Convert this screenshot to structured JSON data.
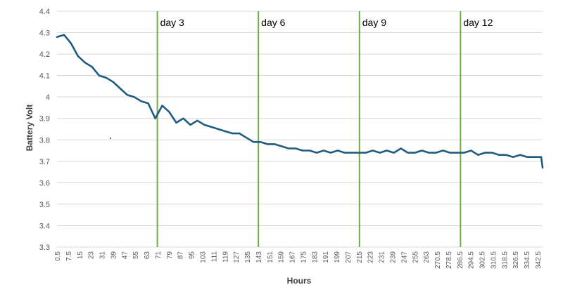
{
  "chart_data": {
    "type": "line",
    "title": "",
    "xlabel": "Hours",
    "ylabel": "Battery Volt",
    "ylim": [
      3.3,
      4.4
    ],
    "y_ticks": [
      "3.3",
      "3.4",
      "3.5",
      "3.6",
      "3.7",
      "3.8",
      "3.9",
      "4",
      "4.1",
      "4.2",
      "4.3",
      "4.4"
    ],
    "x_tick_labels": [
      "0.5",
      "7.5",
      "15",
      "23",
      "31",
      "39",
      "47",
      "55",
      "63",
      "71",
      "79",
      "87",
      "95",
      "103",
      "111",
      "119",
      "127",
      "135",
      "143",
      "151",
      "159",
      "167",
      "175",
      "183",
      "191",
      "199",
      "207",
      "215",
      "223",
      "231",
      "239",
      "247",
      "255",
      "263",
      "270.5",
      "278.5",
      "286.5",
      "294.5",
      "302.5",
      "310.5",
      "318.5",
      "326.5",
      "334.5",
      "342.5"
    ],
    "xlim": [
      0.5,
      346.5
    ],
    "grid": "horizontal",
    "legend": "none",
    "line_color": "#1f5c7f",
    "marker_color": "#70ad47",
    "markers": [
      {
        "label": "day 3",
        "x": 72
      },
      {
        "label": "day 6",
        "x": 144
      },
      {
        "label": "day 9",
        "x": 216
      },
      {
        "label": "day 12",
        "x": 288
      }
    ],
    "series": [
      {
        "x": [
          0.5,
          5.5,
          10.5,
          15.5,
          20.5,
          25.5,
          30.5,
          35.5,
          40.5,
          45.5,
          50.5,
          55.5,
          60.5,
          65.5,
          70.5,
          75.5,
          80.5,
          85.5,
          90.5,
          95.5,
          100.5,
          105.5,
          110.5,
          115.5,
          120.5,
          125.5,
          130.5,
          135.5,
          140.5,
          145.5,
          150.5,
          155.5,
          160.5,
          165.5,
          170.5,
          175.5,
          180.5,
          185.5,
          190.5,
          195.5,
          200.5,
          205.5,
          210.5,
          215.5,
          220.5,
          225.5,
          230.5,
          235.5,
          240.5,
          245.5,
          250.5,
          255.5,
          260.5,
          265.5,
          270.5,
          275.5,
          280.5,
          285.5,
          290.5,
          295.5,
          300.5,
          305.5,
          310.5,
          315.5,
          320.5,
          325.5,
          330.5,
          335.5,
          340.5,
          345.5,
          346.5
        ],
        "values": [
          4.28,
          4.29,
          4.25,
          4.19,
          4.16,
          4.14,
          4.1,
          4.09,
          4.07,
          4.04,
          4.01,
          4.0,
          3.98,
          3.97,
          3.9,
          3.96,
          3.93,
          3.88,
          3.9,
          3.87,
          3.89,
          3.87,
          3.86,
          3.85,
          3.84,
          3.83,
          3.83,
          3.81,
          3.79,
          3.79,
          3.78,
          3.78,
          3.77,
          3.76,
          3.76,
          3.75,
          3.75,
          3.74,
          3.75,
          3.74,
          3.75,
          3.74,
          3.74,
          3.74,
          3.74,
          3.75,
          3.74,
          3.75,
          3.74,
          3.76,
          3.74,
          3.74,
          3.75,
          3.74,
          3.74,
          3.75,
          3.74,
          3.74,
          3.74,
          3.75,
          3.73,
          3.74,
          3.74,
          3.73,
          3.73,
          3.72,
          3.73,
          3.72,
          3.72,
          3.72,
          3.67
        ]
      }
    ]
  }
}
